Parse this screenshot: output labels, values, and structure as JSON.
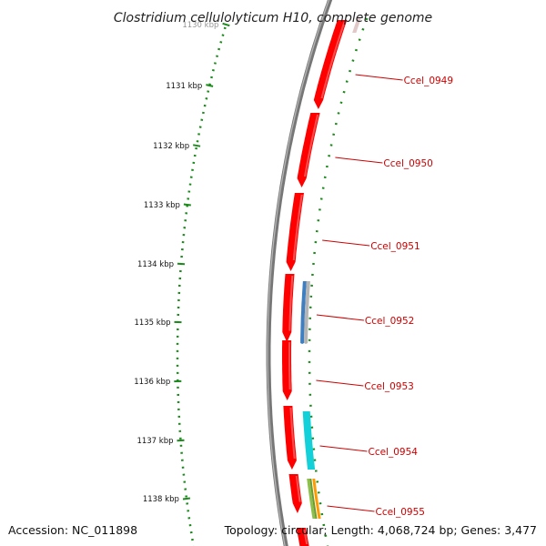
{
  "title": "Clostridium cellulolyticum H10, complete genome",
  "accession": "Accession: NC_011898",
  "topology": "Topology: circular; Length: 4,068,724 bp; Genes: 3,477",
  "kbp_labels": [
    "1130 kbp",
    "1131 kbp",
    "1132 kbp",
    "1133 kbp",
    "1134 kbp",
    "1135 kbp",
    "1136 kbp",
    "1137 kbp",
    "1138 kbp"
  ],
  "genes": [
    "Ccel_0949",
    "Ccel_0950",
    "Ccel_0951",
    "Ccel_0952",
    "Ccel_0953",
    "Ccel_0954",
    "Ccel_0955"
  ],
  "colors": {
    "backbone": "#777777",
    "gene_arrow": "#ff0000",
    "gene_label": "#cc0000",
    "tick_ring": "#1a8a1a",
    "feature_blue": "#3d7fc0",
    "feature_gray": "#b5b5b5",
    "feature_cyan": "#14d0d8",
    "feature_green": "#8cc04a",
    "feature_orange": "#ff9a00"
  }
}
